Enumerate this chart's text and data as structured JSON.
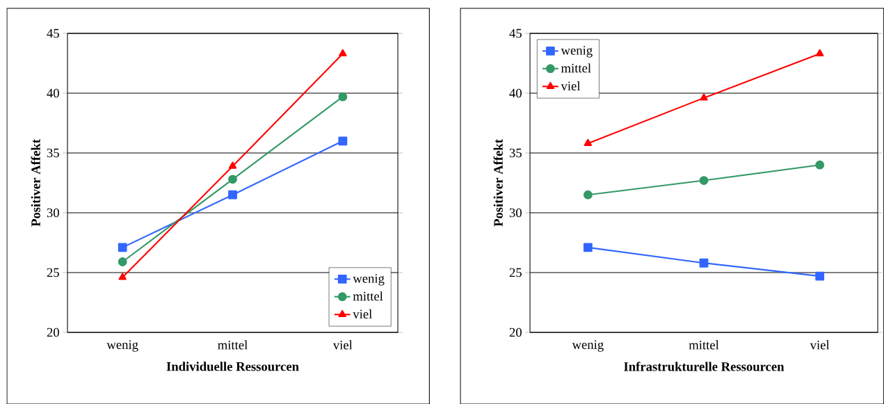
{
  "chart_data": [
    {
      "type": "line",
      "xlabel": "Individuelle Ressourcen",
      "ylabel": "Positiver Affekt",
      "categories": [
        "wenig",
        "mittel",
        "viel"
      ],
      "ylim": [
        20,
        45
      ],
      "yticks": [
        20,
        25,
        30,
        35,
        40,
        45
      ],
      "grid": "y",
      "legend": "bottom right",
      "series": [
        {
          "name": "wenig",
          "color": "#3366ff",
          "marker": "square",
          "values": [
            27.1,
            31.5,
            36.0
          ]
        },
        {
          "name": "mittel",
          "color": "#339966",
          "marker": "circle",
          "values": [
            25.9,
            32.8,
            39.7
          ]
        },
        {
          "name": "viel",
          "color": "#ff0000",
          "marker": "triangle",
          "values": [
            24.6,
            33.9,
            43.3
          ]
        }
      ]
    },
    {
      "type": "line",
      "xlabel": "Infrastrukturelle Ressourcen",
      "ylabel": "Positiver Affekt",
      "categories": [
        "wenig",
        "mittel",
        "viel"
      ],
      "ylim": [
        20,
        45
      ],
      "yticks": [
        20,
        25,
        30,
        35,
        40,
        45
      ],
      "grid": "y",
      "legend": "top left",
      "series": [
        {
          "name": "wenig",
          "color": "#3366ff",
          "marker": "square",
          "values": [
            27.1,
            25.8,
            24.7
          ]
        },
        {
          "name": "mittel",
          "color": "#339966",
          "marker": "circle",
          "values": [
            31.5,
            32.7,
            34.0
          ]
        },
        {
          "name": "viel",
          "color": "#ff0000",
          "marker": "triangle",
          "values": [
            35.8,
            39.6,
            43.3
          ]
        }
      ]
    }
  ]
}
